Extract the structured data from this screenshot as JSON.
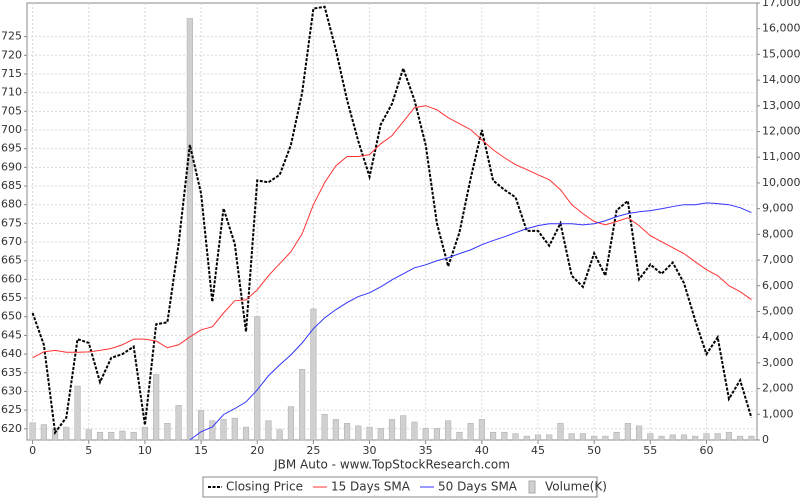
{
  "chart_data": {
    "type": "line",
    "title": "JBM Auto - www.TopStockResearch.com",
    "x": [
      0,
      1,
      2,
      3,
      4,
      5,
      6,
      7,
      8,
      9,
      10,
      11,
      12,
      13,
      14,
      15,
      16,
      17,
      18,
      19,
      20,
      21,
      22,
      23,
      24,
      25,
      26,
      27,
      28,
      29,
      30,
      31,
      32,
      33,
      34,
      35,
      36,
      37,
      38,
      39,
      40,
      41,
      42,
      43,
      44,
      45,
      46,
      47,
      48,
      49,
      50,
      51,
      52,
      53,
      54,
      55,
      56,
      57,
      58,
      59,
      60,
      61,
      62,
      63,
      64
    ],
    "xlim": [
      -0.5,
      64.5
    ],
    "xticks": [
      0,
      5,
      10,
      15,
      20,
      25,
      30,
      35,
      40,
      45,
      50,
      55,
      60
    ],
    "ylim": [
      617,
      734
    ],
    "yticks": [
      620,
      625,
      630,
      635,
      640,
      645,
      650,
      655,
      660,
      665,
      670,
      675,
      680,
      685,
      690,
      695,
      700,
      705,
      710,
      715,
      720,
      725
    ],
    "y2lim": [
      0,
      17000
    ],
    "y2ticks": [
      0,
      {
        "value": 1000,
        "label": "1,000"
      },
      {
        "value": 2000,
        "label": "2,000"
      },
      {
        "value": 3000,
        "label": "3,000"
      },
      {
        "value": 4000,
        "label": "4,000"
      },
      {
        "value": 5000,
        "label": "5,000"
      },
      {
        "value": 6000,
        "label": "6,000"
      },
      {
        "value": 7000,
        "label": "7,000"
      },
      {
        "value": 8000,
        "label": "8,000"
      },
      {
        "value": 9000,
        "label": "9,000"
      },
      {
        "value": 10000,
        "label": "10,000"
      },
      {
        "value": 11000,
        "label": "11,000"
      },
      {
        "value": 12000,
        "label": "12,000"
      },
      {
        "value": 13000,
        "label": "13,000"
      },
      {
        "value": 14000,
        "label": "14,000"
      },
      {
        "value": 15000,
        "label": "15,000"
      },
      {
        "value": 16000,
        "label": "16,000"
      },
      {
        "value": 17000,
        "label": "17,000"
      }
    ],
    "grid": true,
    "series": [
      {
        "name": "Closing Price",
        "color": "#000000",
        "dashed": true,
        "values": [
          651,
          642.5,
          619,
          623,
          644,
          643,
          632.5,
          639,
          640,
          642,
          621,
          648,
          648.5,
          669.5,
          696,
          683,
          654,
          679,
          669.5,
          646,
          686.5,
          686,
          688,
          696,
          710,
          732.5,
          733,
          721.5,
          708,
          697,
          687.5,
          701.5,
          707,
          716.5,
          708,
          696,
          675,
          663.5,
          672.5,
          687,
          700,
          686.5,
          684,
          682,
          673,
          673,
          669,
          675,
          661,
          658,
          667,
          661,
          678.5,
          681,
          660,
          664,
          661.5,
          664.5,
          659,
          649,
          640,
          644.5,
          628,
          633,
          623
        ]
      },
      {
        "name": "15 Days SMA",
        "color": "#ff3333",
        "values": [
          639,
          640.6,
          641,
          640.5,
          640.5,
          640.6,
          641,
          641.5,
          642.5,
          644,
          644,
          643.5,
          641.7,
          642.5,
          644.6,
          646.5,
          647.3,
          651,
          654.3,
          654.5,
          657.2,
          661,
          664.2,
          667.4,
          672.2,
          680,
          685.9,
          690.4,
          692.9,
          692.9,
          693.4,
          696.3,
          698.5,
          702.2,
          706,
          706.5,
          705.4,
          703.3,
          701.7,
          700.1,
          697.4,
          694.7,
          692.6,
          690.7,
          689.4,
          688,
          686.7,
          684,
          680,
          677.6,
          675.5,
          674.6,
          675.5,
          676.5,
          674.4,
          671.7,
          670.1,
          668.5,
          666.9,
          664.7,
          662.6,
          661,
          658.3,
          656.7,
          654.6
        ]
      },
      {
        "name": "50 Days SMA",
        "color": "#3333ff",
        "values": [
          null,
          null,
          null,
          null,
          null,
          null,
          null,
          null,
          null,
          null,
          null,
          null,
          null,
          null,
          617,
          619.2,
          620.5,
          623.8,
          625.4,
          627.2,
          630.4,
          634.2,
          637.1,
          639.8,
          643,
          646.8,
          649.7,
          651.9,
          653.8,
          655.4,
          656.4,
          658,
          659.9,
          661.5,
          663.1,
          663.9,
          665,
          665.8,
          666.9,
          667.9,
          669.3,
          670.4,
          671.4,
          672.5,
          673.6,
          674.4,
          674.9,
          674.9,
          674.9,
          674.6,
          674.9,
          675.7,
          676.8,
          677.6,
          678.1,
          678.4,
          678.9,
          679.5,
          680,
          680,
          680.5,
          680.3,
          680,
          679.2,
          677.9
        ]
      },
      {
        "name": "Volume(K)",
        "color": "#d0d0d0",
        "type": "bar",
        "axis": "y2",
        "values": [
          670,
          600,
          400,
          500,
          2100,
          400,
          300,
          300,
          350,
          300,
          500,
          2550,
          650,
          1350,
          16400,
          1150,
          750,
          800,
          850,
          500,
          4800,
          750,
          400,
          1300,
          2750,
          5100,
          1000,
          800,
          650,
          550,
          500,
          450,
          800,
          950,
          700,
          450,
          450,
          750,
          300,
          650,
          800,
          300,
          300,
          250,
          150,
          200,
          200,
          650,
          250,
          250,
          150,
          150,
          300,
          650,
          550,
          250,
          150,
          200,
          200,
          150,
          250,
          250,
          300,
          150,
          150
        ]
      }
    ]
  }
}
